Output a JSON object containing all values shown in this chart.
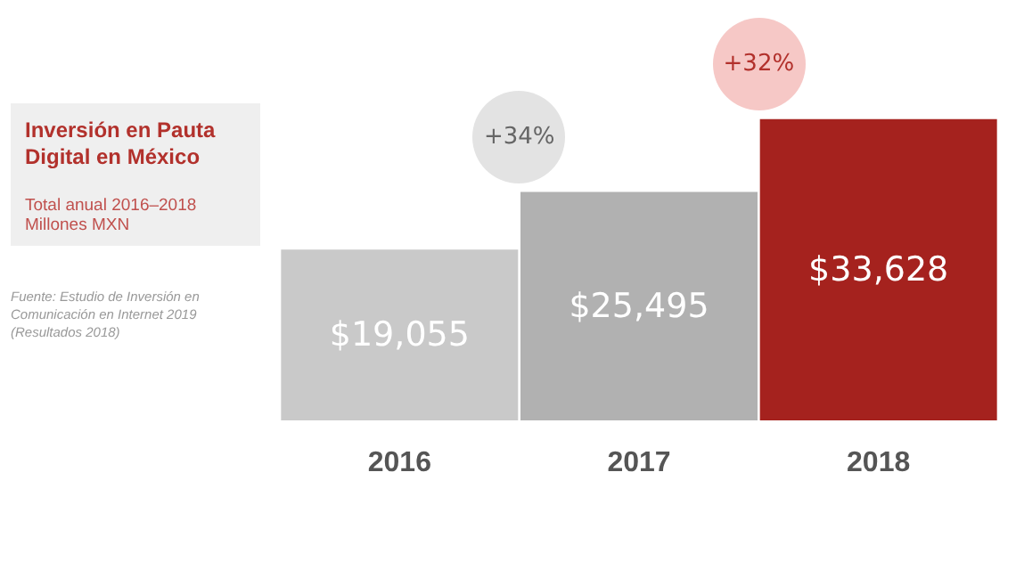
{
  "chart_data": {
    "type": "bar",
    "title": "Inversión en Pauta Digital en México",
    "subtitle": "Total anual 2016–2018\nMillones MXN",
    "categories": [
      "2016",
      "2017",
      "2018"
    ],
    "values": [
      19055,
      25495,
      33628
    ],
    "colors": [
      "#c9c9c9",
      "#b1b1b1",
      "#a5221e"
    ],
    "value_labels": [
      "$19,055",
      "$25,495",
      "$33,628"
    ],
    "tick_labels": "x",
    "annotations": [
      "+34%",
      "+32%",
      "Fuente: Estudio de Inversión en Comunicación en Internet 2019 (Resultados 2018)"
    ]
  }
}
